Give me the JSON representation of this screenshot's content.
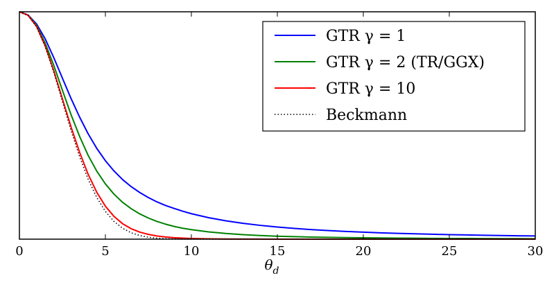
{
  "chart_data": {
    "type": "line",
    "title": "",
    "xlabel": "θ",
    "xlabel_subscript": "d",
    "ylabel": "",
    "xlim": [
      0,
      30
    ],
    "ylim": [
      0,
      1
    ],
    "x_ticks": [
      0,
      5,
      10,
      15,
      20,
      25,
      30
    ],
    "y_ticks": [],
    "grid": false,
    "legend_position": "top-right",
    "series": [
      {
        "name": "GTR γ = 1",
        "legend_label": "GTR γ = 1",
        "color": "#0000ff",
        "style": "solid",
        "x": [
          0,
          0.5,
          1,
          1.5,
          2,
          2.5,
          3,
          3.5,
          4,
          4.5,
          5,
          5.5,
          6,
          6.5,
          7,
          7.5,
          8,
          8.5,
          9,
          9.5,
          10,
          11,
          12,
          13,
          14,
          15,
          16,
          17,
          18,
          19,
          20,
          21,
          22,
          23,
          24,
          25,
          26,
          27,
          28,
          29,
          30
        ],
        "values": [
          1.0,
          0.986,
          0.946,
          0.881,
          0.798,
          0.708,
          0.619,
          0.537,
          0.463,
          0.399,
          0.345,
          0.3,
          0.262,
          0.231,
          0.205,
          0.183,
          0.164,
          0.148,
          0.135,
          0.123,
          0.112,
          0.0945,
          0.0808,
          0.0698,
          0.0608,
          0.0535,
          0.0473,
          0.0421,
          0.0377,
          0.034,
          0.0308,
          0.028,
          0.0256,
          0.0235,
          0.0216,
          0.02,
          0.0185,
          0.0172,
          0.016,
          0.015,
          0.014
        ]
      },
      {
        "name": "GTR γ = 2 (TR/GGX)",
        "legend_label": "GTR γ = 2 (TR/GGX)",
        "color": "#008000",
        "style": "solid",
        "x": [
          0,
          0.5,
          1,
          1.5,
          2,
          2.5,
          3,
          3.5,
          4,
          4.5,
          5,
          5.5,
          6,
          6.5,
          7,
          7.5,
          8,
          8.5,
          9,
          9.5,
          10,
          11,
          12,
          13,
          14,
          15,
          16,
          17,
          18,
          19,
          20,
          21,
          22,
          23,
          24,
          25,
          26,
          27,
          28,
          29,
          30
        ],
        "values": [
          1.0,
          0.985,
          0.94,
          0.862,
          0.764,
          0.655,
          0.548,
          0.452,
          0.368,
          0.299,
          0.243,
          0.198,
          0.162,
          0.134,
          0.111,
          0.093,
          0.078,
          0.066,
          0.056,
          0.048,
          0.042,
          0.032,
          0.025,
          0.02,
          0.016,
          0.013,
          0.011,
          0.0093,
          0.008,
          0.0069,
          0.006,
          0.0052,
          0.0046,
          0.0041,
          0.0036,
          0.0032,
          0.0029,
          0.0026,
          0.0023,
          0.0021,
          0.0019
        ]
      },
      {
        "name": "GTR γ = 10",
        "legend_label": "GTR γ = 10",
        "color": "#ff0000",
        "style": "solid",
        "x": [
          0,
          0.5,
          1,
          1.5,
          2,
          2.5,
          3,
          3.5,
          4,
          4.5,
          5,
          5.5,
          6,
          6.5,
          7,
          7.5,
          8,
          8.5,
          9,
          9.5,
          10,
          11,
          12,
          13,
          14,
          15,
          16,
          17,
          18,
          19,
          20,
          21,
          22,
          23,
          24,
          25,
          26,
          27,
          28,
          29,
          30
        ],
        "values": [
          1.0,
          0.985,
          0.935,
          0.85,
          0.74,
          0.617,
          0.494,
          0.382,
          0.285,
          0.206,
          0.145,
          0.1,
          0.068,
          0.046,
          0.031,
          0.021,
          0.014,
          0.0095,
          0.0065,
          0.0045,
          0.0031,
          0.0015,
          0.0008,
          0.0004,
          0.0002,
          0.0001,
          0.0001,
          0,
          0,
          0,
          0,
          0,
          0,
          0,
          0,
          0,
          0,
          0,
          0,
          0,
          0
        ]
      },
      {
        "name": "Beckmann",
        "legend_label": "Beckmann",
        "color": "#000000",
        "style": "dotted",
        "x": [
          0,
          0.5,
          1,
          1.5,
          2,
          2.5,
          3,
          3.5,
          4,
          4.5,
          5,
          5.5,
          6,
          6.5,
          7,
          7.5,
          8,
          8.5,
          9,
          9.5,
          10,
          11,
          12,
          13,
          14,
          15,
          16,
          17,
          18,
          19,
          20,
          21,
          22,
          23,
          24,
          25,
          26,
          27,
          28,
          29,
          30
        ],
        "values": [
          1.0,
          0.985,
          0.934,
          0.847,
          0.734,
          0.606,
          0.479,
          0.363,
          0.263,
          0.183,
          0.122,
          0.078,
          0.048,
          0.028,
          0.016,
          0.0085,
          0.0044,
          0.0021,
          0.001,
          0.0004,
          0.0002,
          0,
          0,
          0,
          0,
          0,
          0,
          0,
          0,
          0,
          0,
          0,
          0,
          0,
          0,
          0,
          0,
          0,
          0,
          0,
          0
        ]
      }
    ]
  }
}
